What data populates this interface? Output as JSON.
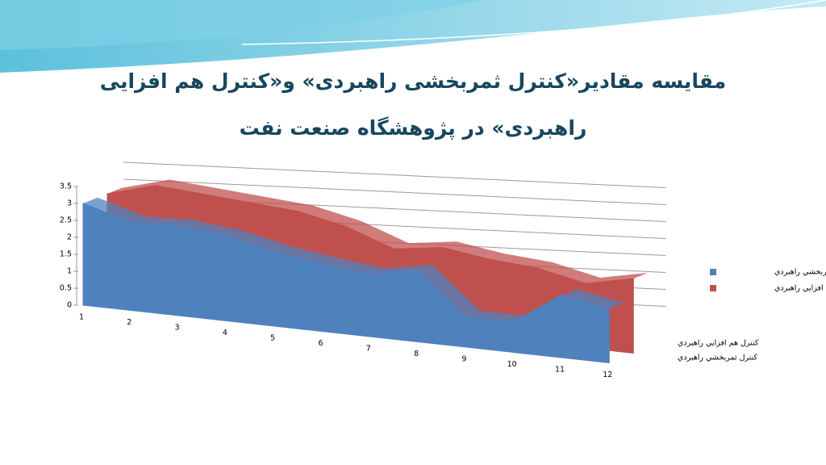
{
  "chart_data": {
    "type": "area3d",
    "title": "مقایسه مقادیر«کنترل ثمربخشی راهبردی» و«کنترل هم افزایی راهبردی» در پژوهشگاه صنعت نفت",
    "categories": [
      "1",
      "2",
      "3",
      "4",
      "5",
      "6",
      "7",
      "8",
      "9",
      "10",
      "11",
      "12"
    ],
    "series": [
      {
        "name": "کنترل ثمربخشي راهبردي",
        "color": "#4f81bd",
        "values": [
          3.0,
          2.6,
          2.65,
          2.5,
          2.2,
          2.0,
          1.85,
          2.1,
          0.9,
          0.9,
          1.85,
          1.6
        ]
      },
      {
        "name": "کنترل هم افزايي راهبردي",
        "color": "#c0504d",
        "values": [
          3.0,
          3.4,
          3.3,
          3.2,
          3.1,
          2.8,
          2.3,
          2.5,
          2.3,
          2.2,
          1.9,
          2.2
        ]
      }
    ],
    "ylim": [
      0,
      3.5
    ],
    "yticks": [
      0,
      0.5,
      1,
      1.5,
      2,
      2.5,
      3,
      3.5
    ],
    "grid": true
  }
}
